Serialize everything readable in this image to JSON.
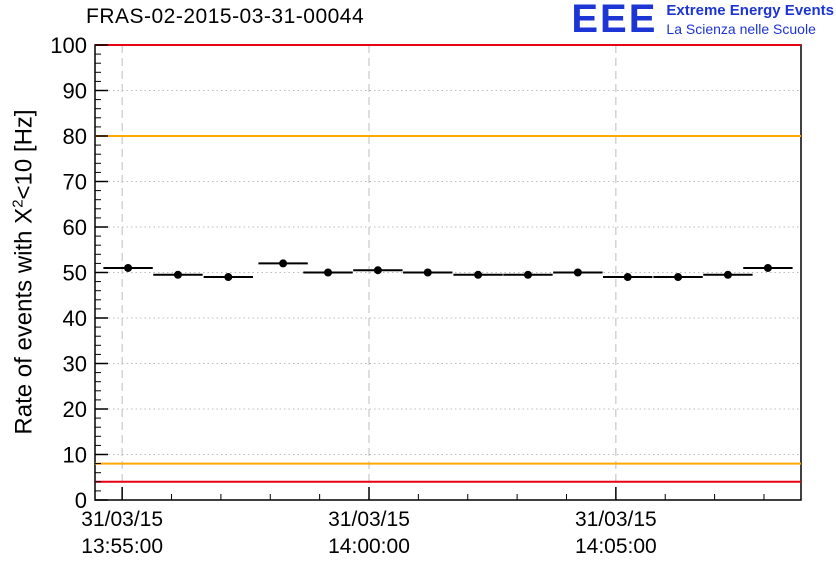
{
  "header": {
    "title": "FRAS-02-2015-03-31-00044",
    "logo": {
      "acronym": "EEE",
      "line1": "Extreme Energy Events",
      "line2": "La Scienza nelle Scuole"
    }
  },
  "colors": {
    "logo_blue": "#1c35d4",
    "grid": "#bdbdbd",
    "frame": "#000000",
    "marker": "#000000",
    "alarm_red": "#e60012",
    "warning_orange": "#ffa800"
  },
  "chart_data": {
    "type": "scatter",
    "title": "FRAS-02-2015-03-31-00044",
    "ylabel": "Rate of events with X^2<10 [Hz]",
    "ylabel_parts": {
      "pre": "Rate of events with X",
      "sup": "2",
      "post": "<10 [Hz]"
    },
    "ylim": [
      0,
      100
    ],
    "y_major_step": 10,
    "y_minor_step": 2,
    "xlim_minutes": [
      -0.55,
      13.75
    ],
    "x_minor_step_minutes": 1,
    "x_ticks": [
      {
        "minute": 0,
        "date": "31/03/15",
        "time": "13:55:00"
      },
      {
        "minute": 5,
        "date": "31/03/15",
        "time": "14:00:00"
      },
      {
        "minute": 10,
        "date": "31/03/15",
        "time": "14:05:00"
      }
    ],
    "threshold_lines": [
      {
        "y": 100,
        "color": "#e60012"
      },
      {
        "y": 80,
        "color": "#ffa800"
      },
      {
        "y": 8,
        "color": "#ffa800"
      },
      {
        "y": 4,
        "color": "#e60012"
      }
    ],
    "points": [
      {
        "x": 0.12,
        "y": 51.0,
        "xerr": 0.5
      },
      {
        "x": 1.13,
        "y": 49.5,
        "xerr": 0.5
      },
      {
        "x": 2.15,
        "y": 49.0,
        "xerr": 0.5
      },
      {
        "x": 3.26,
        "y": 52.0,
        "xerr": 0.5
      },
      {
        "x": 4.17,
        "y": 50.0,
        "xerr": 0.5
      },
      {
        "x": 5.18,
        "y": 50.5,
        "xerr": 0.5
      },
      {
        "x": 6.19,
        "y": 50.0,
        "xerr": 0.5
      },
      {
        "x": 7.21,
        "y": 49.5,
        "xerr": 0.5
      },
      {
        "x": 8.22,
        "y": 49.5,
        "xerr": 0.5
      },
      {
        "x": 9.23,
        "y": 50.0,
        "xerr": 0.5
      },
      {
        "x": 10.24,
        "y": 49.0,
        "xerr": 0.5
      },
      {
        "x": 11.26,
        "y": 49.0,
        "xerr": 0.5
      },
      {
        "x": 12.27,
        "y": 49.5,
        "xerr": 0.5
      },
      {
        "x": 13.08,
        "y": 51.0,
        "xerr": 0.5
      }
    ]
  }
}
